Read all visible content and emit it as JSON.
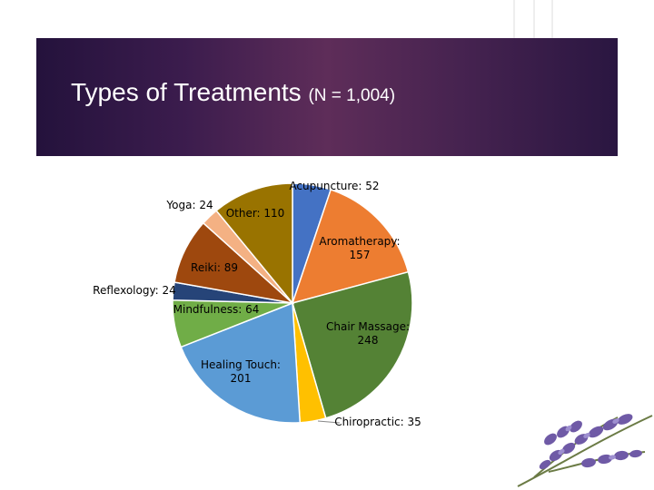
{
  "slide": {
    "title_main": "Types of Treatments",
    "title_n": "(N = 1,004)",
    "decoration": "lavender-sprig-image"
  },
  "chart_data": {
    "type": "pie",
    "slices": [
      {
        "label": "Acupuncture",
        "value": 52,
        "color": "#4472c4",
        "text_lines": [
          "Acupuncture: 52"
        ],
        "text_color": "#000000"
      },
      {
        "label": "Aromatherapy",
        "value": 157,
        "color": "#ed7d31",
        "text_lines": [
          "Aromatherapy:",
          "157"
        ],
        "text_color": "#ffffff"
      },
      {
        "label": "Chair Massage",
        "value": 248,
        "color": "#548235",
        "text_lines": [
          "Chair Massage:",
          "248"
        ],
        "text_color": "#ffffff"
      },
      {
        "label": "Chiropractic",
        "value": 35,
        "color": "#ffc000",
        "text_lines": [
          "Chiropractic: 35"
        ],
        "text_color": "#000000"
      },
      {
        "label": "Healing Touch",
        "value": 201,
        "color": "#5b9bd5",
        "text_lines": [
          "Healing Touch:",
          "201"
        ],
        "text_color": "#ffffff"
      },
      {
        "label": "Mindfulness",
        "value": 64,
        "color": "#70ad47",
        "text_lines": [
          "Mindfulness: 64"
        ],
        "text_color": "#ffffff"
      },
      {
        "label": "Reflexology",
        "value": 24,
        "color": "#264478",
        "text_lines": [
          "Reflexology: 24"
        ],
        "text_color": "#000000"
      },
      {
        "label": "Reiki",
        "value": 89,
        "color": "#9e480e",
        "text_lines": [
          "Reiki: 89"
        ],
        "text_color": "#000000"
      },
      {
        "label": "Yoga",
        "value": 24,
        "color": "#f4b183",
        "text_lines": [
          "Yoga: 24"
        ],
        "text_color": "#000000"
      },
      {
        "label": "Other",
        "value": 110,
        "color": "#997300",
        "text_lines": [
          "Other: 110"
        ],
        "text_color": "#000000"
      }
    ]
  }
}
